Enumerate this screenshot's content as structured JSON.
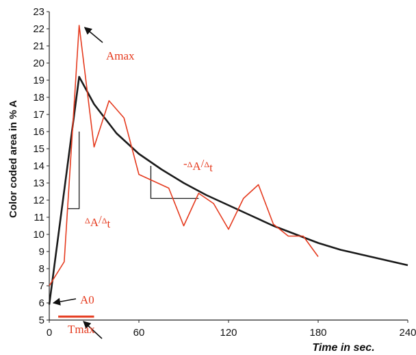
{
  "chart_data": {
    "type": "line",
    "xlabel": "Time in sec.",
    "ylabel": "Color coded area in % A",
    "xlim": [
      0,
      240
    ],
    "ylim": [
      5,
      23
    ],
    "xticks": [
      0,
      60,
      120,
      180,
      240
    ],
    "yticks": [
      5,
      6,
      7,
      8,
      9,
      10,
      11,
      12,
      13,
      14,
      15,
      16,
      17,
      18,
      19,
      20,
      21,
      22,
      23
    ],
    "grid": false,
    "series": [
      {
        "color": "#e53a1e",
        "x": [
          0,
          10,
          20,
          30,
          40,
          50,
          60,
          70,
          80,
          90,
          100,
          110,
          120,
          130,
          140,
          150,
          160,
          170,
          180
        ],
        "y": [
          7.0,
          8.4,
          22.2,
          15.1,
          17.8,
          16.8,
          13.5,
          13.1,
          12.7,
          10.5,
          12.4,
          11.8,
          10.3,
          12.1,
          12.9,
          10.6,
          9.9,
          9.9,
          8.7
        ]
      },
      {
        "color": "#1a1a1a",
        "x": [
          0,
          20,
          30,
          45,
          60,
          75,
          90,
          105,
          120,
          135,
          150,
          165,
          180,
          195,
          210,
          225,
          240
        ],
        "y": [
          5.9,
          19.2,
          17.6,
          15.9,
          14.7,
          13.8,
          13.0,
          12.3,
          11.7,
          11.1,
          10.5,
          10.0,
          9.5,
          9.1,
          8.8,
          8.5,
          8.2
        ]
      }
    ],
    "annotations": {
      "amax": "Amax",
      "a0": "A0",
      "tmax": "Tmax",
      "slope_up": {
        "a": "A",
        "delta": "Δ",
        "sep": "/",
        "t": "t"
      },
      "slope_down": {
        "minus": "-",
        "a": "A",
        "delta": "Δ",
        "sep": "/",
        "t": "t"
      }
    },
    "marks": {
      "amax": {
        "x": 20,
        "y": 22.2
      },
      "a0": {
        "x": 0,
        "y": 6.0
      },
      "tmax": {
        "x": 22,
        "y": 5.2
      },
      "tmax_bar": {
        "x0": 6,
        "x1": 30,
        "y": 5.2
      },
      "slope_up_triangle": {
        "x_left": 12,
        "x_right": 20,
        "y_low": 11.5,
        "y_high": 16.0
      },
      "slope_down_triangle": {
        "x_left": 68,
        "x_right": 100,
        "y_low": 12.1,
        "y_high": 14.0
      }
    }
  }
}
